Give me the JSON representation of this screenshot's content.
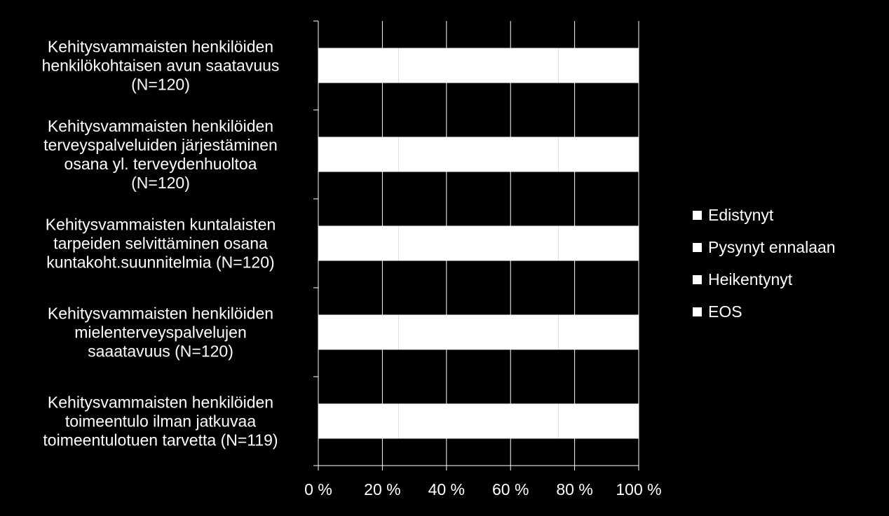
{
  "chart_data": {
    "type": "bar",
    "orientation": "horizontal",
    "stacked": true,
    "percent_stacked": true,
    "categories": [
      "Kehitysvammaisten henkilöiden\nhenkilökohtaisen avun saatavuus\n(N=120)",
      "Kehitysvammaisten henkilöiden\nterveyspalveluiden järjestäminen\nosana yl. terveydenhuoltoa\n(N=120)",
      "Kehitysvammaisten kuntalaisten\ntarpeiden selvittäminen osana\nkuntakoht.suunnitelmia (N=120)",
      "Kehitysvammaisten henkilöiden\nmielenterveyspalvelujen\nsaaatavuus (N=120)",
      "Kehitysvammaisten henkilöiden\ntoimeentulo ilman jatkuvaa\ntoimeentulotuen tarvetta (N=119)"
    ],
    "series": [
      {
        "name": "Edistynyt",
        "color": "#ffffff",
        "values": [
          25,
          25,
          25,
          25,
          25
        ]
      },
      {
        "name": "Pysynyt ennalaan",
        "color": "#ffffff",
        "values": [
          25,
          25,
          25,
          25,
          25
        ]
      },
      {
        "name": "Heikentynyt",
        "color": "#ffffff",
        "values": [
          25,
          25,
          25,
          25,
          25
        ]
      },
      {
        "name": "EOS",
        "color": "#ffffff",
        "values": [
          25,
          25,
          25,
          25,
          25
        ]
      }
    ],
    "xlim": [
      0,
      100
    ],
    "x_ticks": [
      "0 %",
      "20 %",
      "40 %",
      "60 %",
      "80 %",
      "100 %"
    ],
    "x_tick_values": [
      0,
      20,
      40,
      60,
      80,
      100
    ],
    "grid": true,
    "legend_position": "right",
    "background": "#000000",
    "axis_color": "#ffffff"
  }
}
